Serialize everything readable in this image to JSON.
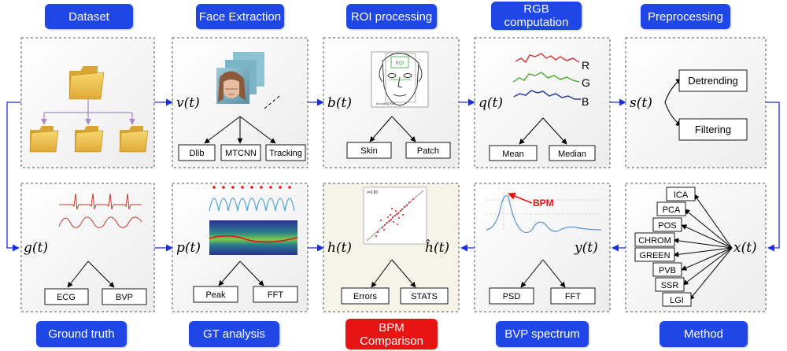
{
  "stages_top": {
    "dataset": "Dataset",
    "face_extraction": "Face Extraction",
    "roi_processing": "ROI processing",
    "rgb_computation_line1": "RGB",
    "rgb_computation_line2": "computation",
    "preprocessing": "Preprocessing"
  },
  "stages_bottom": {
    "ground_truth": "Ground truth",
    "gt_analysis": "GT analysis",
    "bpm_comparison_line1": "BPM",
    "bpm_comparison_line2": "Comparison",
    "bvp_spectrum": "BVP spectrum",
    "method": "Method"
  },
  "signals": {
    "v": "v(t)",
    "b": "b(t)",
    "q": "q(t)",
    "s": "s(t)",
    "g": "g(t)",
    "p": "p(t)",
    "h": "h(t)",
    "h_hat": "ĥ(t)",
    "y": "y(t)",
    "x": "x(t)"
  },
  "leaves": {
    "face": [
      "Dlib",
      "MTCNN",
      "Tracking"
    ],
    "roi": [
      "Skin",
      "Patch"
    ],
    "rgb": [
      "Mean",
      "Median"
    ],
    "pre": [
      "Detrending",
      "Filtering"
    ],
    "gt": [
      "ECG",
      "BVP"
    ],
    "gta": [
      "Peak",
      "FFT"
    ],
    "bpm": [
      "Errors",
      "STATS"
    ],
    "spec": [
      "PSD",
      "FFT"
    ],
    "methods": [
      "ICA",
      "PCA",
      "POS",
      "CHROM",
      "GREEN",
      "PVB",
      "SSR",
      "LGI"
    ]
  },
  "channel_labels": [
    "R",
    "G",
    "B"
  ],
  "roi_labels": {
    "roi": "ROI",
    "tracking": "Tracking points",
    "box": "bounding box"
  },
  "bpm_label": "BPM",
  "scatter_label": "r=0.80",
  "colors": {
    "header_blue": "#1f47e6",
    "header_red": "#e81414",
    "arrow_blue": "#1c2fe0",
    "folder_yellow": "#f2c64a",
    "tree_arrow_purple": "#a78bc9",
    "red_channel": "#d23b3b",
    "green_channel": "#54b03a",
    "blue_channel": "#2f3f9a"
  }
}
